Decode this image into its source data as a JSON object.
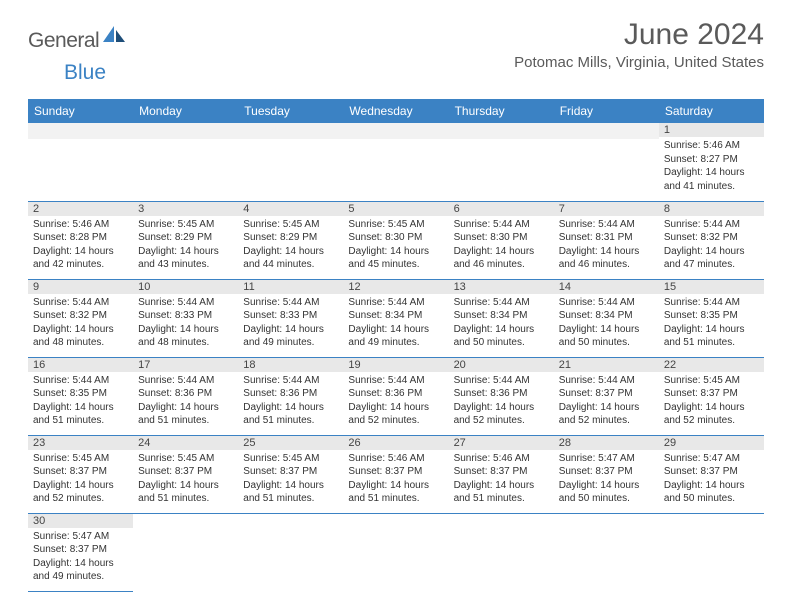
{
  "brand": {
    "part1": "General",
    "part2": "Blue"
  },
  "title": "June 2024",
  "location": "Potomac Mills, Virginia, United States",
  "colors": {
    "header_bg": "#3b82c4",
    "header_text": "#ffffff",
    "daynum_bg": "#e8e8e8",
    "empty_bg": "#f2f2f2",
    "border": "#3b82c4",
    "text": "#333333",
    "brand_gray": "#5a5a5a",
    "brand_blue": "#3b82c4"
  },
  "typography": {
    "title_fontsize": 30,
    "location_fontsize": 15,
    "dayheader_fontsize": 12,
    "daynum_fontsize": 11,
    "detail_fontsize": 10
  },
  "day_headers": [
    "Sunday",
    "Monday",
    "Tuesday",
    "Wednesday",
    "Thursday",
    "Friday",
    "Saturday"
  ],
  "weeks": [
    [
      null,
      null,
      null,
      null,
      null,
      null,
      {
        "n": "1",
        "sunrise": "5:46 AM",
        "sunset": "8:27 PM",
        "dl": "14 hours and 41 minutes."
      }
    ],
    [
      {
        "n": "2",
        "sunrise": "5:46 AM",
        "sunset": "8:28 PM",
        "dl": "14 hours and 42 minutes."
      },
      {
        "n": "3",
        "sunrise": "5:45 AM",
        "sunset": "8:29 PM",
        "dl": "14 hours and 43 minutes."
      },
      {
        "n": "4",
        "sunrise": "5:45 AM",
        "sunset": "8:29 PM",
        "dl": "14 hours and 44 minutes."
      },
      {
        "n": "5",
        "sunrise": "5:45 AM",
        "sunset": "8:30 PM",
        "dl": "14 hours and 45 minutes."
      },
      {
        "n": "6",
        "sunrise": "5:44 AM",
        "sunset": "8:30 PM",
        "dl": "14 hours and 46 minutes."
      },
      {
        "n": "7",
        "sunrise": "5:44 AM",
        "sunset": "8:31 PM",
        "dl": "14 hours and 46 minutes."
      },
      {
        "n": "8",
        "sunrise": "5:44 AM",
        "sunset": "8:32 PM",
        "dl": "14 hours and 47 minutes."
      }
    ],
    [
      {
        "n": "9",
        "sunrise": "5:44 AM",
        "sunset": "8:32 PM",
        "dl": "14 hours and 48 minutes."
      },
      {
        "n": "10",
        "sunrise": "5:44 AM",
        "sunset": "8:33 PM",
        "dl": "14 hours and 48 minutes."
      },
      {
        "n": "11",
        "sunrise": "5:44 AM",
        "sunset": "8:33 PM",
        "dl": "14 hours and 49 minutes."
      },
      {
        "n": "12",
        "sunrise": "5:44 AM",
        "sunset": "8:34 PM",
        "dl": "14 hours and 49 minutes."
      },
      {
        "n": "13",
        "sunrise": "5:44 AM",
        "sunset": "8:34 PM",
        "dl": "14 hours and 50 minutes."
      },
      {
        "n": "14",
        "sunrise": "5:44 AM",
        "sunset": "8:34 PM",
        "dl": "14 hours and 50 minutes."
      },
      {
        "n": "15",
        "sunrise": "5:44 AM",
        "sunset": "8:35 PM",
        "dl": "14 hours and 51 minutes."
      }
    ],
    [
      {
        "n": "16",
        "sunrise": "5:44 AM",
        "sunset": "8:35 PM",
        "dl": "14 hours and 51 minutes."
      },
      {
        "n": "17",
        "sunrise": "5:44 AM",
        "sunset": "8:36 PM",
        "dl": "14 hours and 51 minutes."
      },
      {
        "n": "18",
        "sunrise": "5:44 AM",
        "sunset": "8:36 PM",
        "dl": "14 hours and 51 minutes."
      },
      {
        "n": "19",
        "sunrise": "5:44 AM",
        "sunset": "8:36 PM",
        "dl": "14 hours and 52 minutes."
      },
      {
        "n": "20",
        "sunrise": "5:44 AM",
        "sunset": "8:36 PM",
        "dl": "14 hours and 52 minutes."
      },
      {
        "n": "21",
        "sunrise": "5:44 AM",
        "sunset": "8:37 PM",
        "dl": "14 hours and 52 minutes."
      },
      {
        "n": "22",
        "sunrise": "5:45 AM",
        "sunset": "8:37 PM",
        "dl": "14 hours and 52 minutes."
      }
    ],
    [
      {
        "n": "23",
        "sunrise": "5:45 AM",
        "sunset": "8:37 PM",
        "dl": "14 hours and 52 minutes."
      },
      {
        "n": "24",
        "sunrise": "5:45 AM",
        "sunset": "8:37 PM",
        "dl": "14 hours and 51 minutes."
      },
      {
        "n": "25",
        "sunrise": "5:45 AM",
        "sunset": "8:37 PM",
        "dl": "14 hours and 51 minutes."
      },
      {
        "n": "26",
        "sunrise": "5:46 AM",
        "sunset": "8:37 PM",
        "dl": "14 hours and 51 minutes."
      },
      {
        "n": "27",
        "sunrise": "5:46 AM",
        "sunset": "8:37 PM",
        "dl": "14 hours and 51 minutes."
      },
      {
        "n": "28",
        "sunrise": "5:47 AM",
        "sunset": "8:37 PM",
        "dl": "14 hours and 50 minutes."
      },
      {
        "n": "29",
        "sunrise": "5:47 AM",
        "sunset": "8:37 PM",
        "dl": "14 hours and 50 minutes."
      }
    ],
    [
      {
        "n": "30",
        "sunrise": "5:47 AM",
        "sunset": "8:37 PM",
        "dl": "14 hours and 49 minutes."
      },
      null,
      null,
      null,
      null,
      null,
      null
    ]
  ],
  "labels": {
    "sunrise_prefix": "Sunrise: ",
    "sunset_prefix": "Sunset: ",
    "daylight_prefix": "Daylight: "
  }
}
